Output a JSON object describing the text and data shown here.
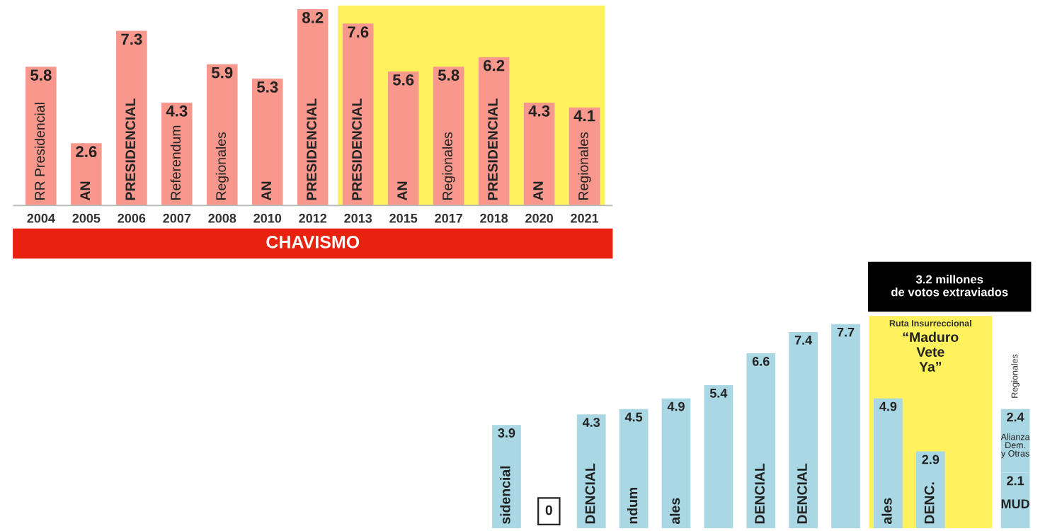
{
  "chart_data": [
    {
      "type": "bar",
      "categories": [
        "2004",
        "2005",
        "2006",
        "2007",
        "2008",
        "2010",
        "2012",
        "2013",
        "2015",
        "2017",
        "2018",
        "2020",
        "2021"
      ],
      "values": [
        5.8,
        2.6,
        7.3,
        4.3,
        5.9,
        5.3,
        8.2,
        7.6,
        5.6,
        5.8,
        6.2,
        4.3,
        4.1
      ],
      "color": "#f8978c",
      "data_labels": true,
      "tick_labels": "x",
      "grid": false,
      "bands": [
        {
          "axis": "x",
          "from": "2013",
          "to": "2021",
          "color": "#fff25c"
        }
      ],
      "annotations": [
        "CHAVISMO",
        {
          "text": "RR Presidencial",
          "x": "2004",
          "y": 0.2
        },
        {
          "text": "AN",
          "x": "2005",
          "y": 0.2
        },
        {
          "text": "PRESIDENCIAL",
          "x": "2006",
          "y": 0.2
        },
        {
          "text": "Referendum",
          "x": "2007",
          "y": 0.2
        },
        {
          "text": "Regionales",
          "x": "2008",
          "y": 0.2
        },
        {
          "text": "AN",
          "x": "2010",
          "y": 0.2
        },
        {
          "text": "PRESIDENCIAL",
          "x": "2012",
          "y": 0.2
        },
        {
          "text": "PRESIDENCIAL",
          "x": "2013",
          "y": 0.2
        },
        {
          "text": "AN",
          "x": "2015",
          "y": 0.2
        },
        {
          "text": "Regionales",
          "x": "2017",
          "y": 0.2
        },
        {
          "text": "PRESIDENCIAL",
          "x": "2018",
          "y": 0.2
        },
        {
          "text": "AN",
          "x": "2020",
          "y": 0.2
        },
        {
          "text": "Regionales",
          "x": "2021",
          "y": 0.2
        }
      ]
    },
    {
      "type": "bar",
      "categories": [
        "sidencial",
        null,
        "DENCIAL",
        "ndum",
        "ales",
        null,
        "DENCIAL",
        "DENCIAL",
        null,
        "ales",
        "DENC.",
        null,
        "Regionales"
      ],
      "stacked": true,
      "data_labels": true,
      "tick_labels": false,
      "grid": false,
      "series": [
        {
          "color": "#a9d7e3",
          "values": [
            3.9,
            0,
            4.3,
            4.5,
            4.9,
            5.4,
            6.6,
            7.4,
            7.7,
            4.9,
            2.9,
            null,
            2.1
          ]
        },
        {
          "color": "#a9d7e3",
          "values": [
            null,
            null,
            null,
            null,
            null,
            null,
            null,
            null,
            null,
            null,
            null,
            null,
            2.4
          ]
        }
      ],
      "annotations": [
        "3.2 millones\nde votos extraviados",
        "Ruta Insurreccional",
        "“Maduro\nVete\nYa”",
        "MUD",
        "Alianza\nDem.\ny Otras"
      ]
    }
  ]
}
